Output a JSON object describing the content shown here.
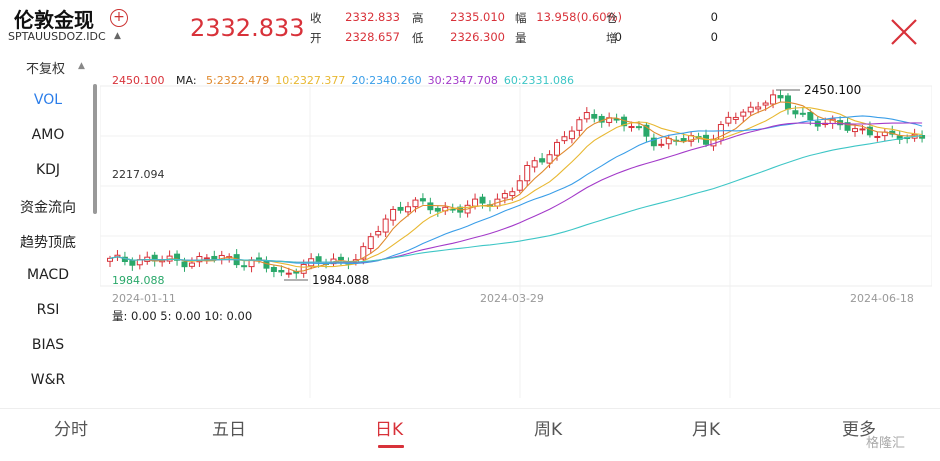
{
  "header": {
    "title": "伦敦金现",
    "symbol": "SPTAUUSDOZ.IDC",
    "last_price": "2332.833",
    "quotes": [
      {
        "label": "收",
        "value": "2332.833",
        "color": "red"
      },
      {
        "label": "开",
        "value": "2328.657",
        "color": "red"
      },
      {
        "label": "高",
        "value": "2335.010",
        "color": "red"
      },
      {
        "label": "低",
        "value": "2326.300",
        "color": "red"
      },
      {
        "label": "幅",
        "value": "13.958(0.60%)",
        "color": "red"
      },
      {
        "label": "量",
        "value": "0",
        "color": "black"
      },
      {
        "label": "仓",
        "value": "0",
        "color": "black"
      },
      {
        "label": "增",
        "value": "0",
        "color": "black"
      }
    ]
  },
  "left_menu": {
    "adjust": "不复权",
    "items": [
      "VOL",
      "AMO",
      "KDJ",
      "资金流向",
      "趋势顶底",
      "MACD",
      "RSI",
      "BIAS",
      "W&R"
    ],
    "active": "VOL"
  },
  "legend": {
    "current": "2450.100",
    "ma_label": "MA:",
    "ma": [
      {
        "label": "5:2322.479",
        "color": "#e08a2e"
      },
      {
        "label": "10:2327.377",
        "color": "#e8b832"
      },
      {
        "label": "20:2340.260",
        "color": "#3a9ee8"
      },
      {
        "label": "30:2347.708",
        "color": "#a33ac9"
      },
      {
        "label": "60:2331.086",
        "color": "#3ec6c6"
      }
    ]
  },
  "chart_data": {
    "type": "candlestick",
    "max_label": "2450.100",
    "min_label": "1984.088",
    "y_mid_label": "2217.094",
    "y_bottom_label": "1984.088",
    "x_ticks": [
      "2024-01-11",
      "2024-03-29",
      "2024-06-18"
    ],
    "ylim": [
      1984.088,
      2450.1
    ]
  },
  "volume": {
    "label": "量: 0.00  5: 0.00  10: 0.00"
  },
  "bottom_tabs": {
    "items": [
      "分时",
      "五日",
      "日K",
      "周K",
      "月K",
      "更多"
    ],
    "active": "日K"
  },
  "watermark": "格隆汇"
}
